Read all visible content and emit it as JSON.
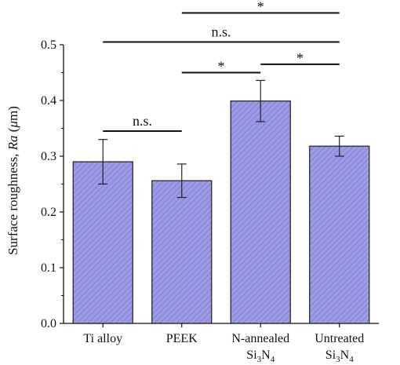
{
  "chart_data": {
    "type": "bar",
    "title": "",
    "xlabel": "",
    "ylabel": {
      "prefix": "Surface roughness, ",
      "italic": "Ra",
      "unit_open": " (",
      "unit_mu": "μ",
      "unit_rest": "m)"
    },
    "ylim": [
      0,
      0.5
    ],
    "yticks": [
      "0.0",
      "0.1",
      "0.2",
      "0.3",
      "0.4",
      "0.5"
    ],
    "categories": [
      {
        "line1": "Ti alloy",
        "line2": ""
      },
      {
        "line1": "PEEK",
        "line2": ""
      },
      {
        "line1": "N-annealed",
        "line2": {
          "base": "Si",
          "sub1": "3",
          "mid": "N",
          "sub2": "4"
        }
      },
      {
        "line1": "Untreated",
        "line2": {
          "base": "Si",
          "sub1": "3",
          "mid": "N",
          "sub2": "4"
        }
      }
    ],
    "values": [
      0.29,
      0.256,
      0.399,
      0.318
    ],
    "error": [
      0.04,
      0.03,
      0.037,
      0.018
    ],
    "bar_fill": "#9c9ce6",
    "bar_hatch": "#7777d0",
    "bar_stroke": "#2a2a2a",
    "grid": false,
    "significance": [
      {
        "from": 0,
        "to": 1,
        "y": 0.345,
        "label": "n.s."
      },
      {
        "from": 1,
        "to": 2,
        "y": 0.45,
        "label": "*"
      },
      {
        "from": 2,
        "to": 3,
        "y": 0.465,
        "label": "*"
      },
      {
        "from": 0,
        "to": 3,
        "y": 0.505,
        "label": "n.s."
      },
      {
        "from": 1,
        "to": 3,
        "y": 0.557,
        "label": "*"
      }
    ]
  }
}
